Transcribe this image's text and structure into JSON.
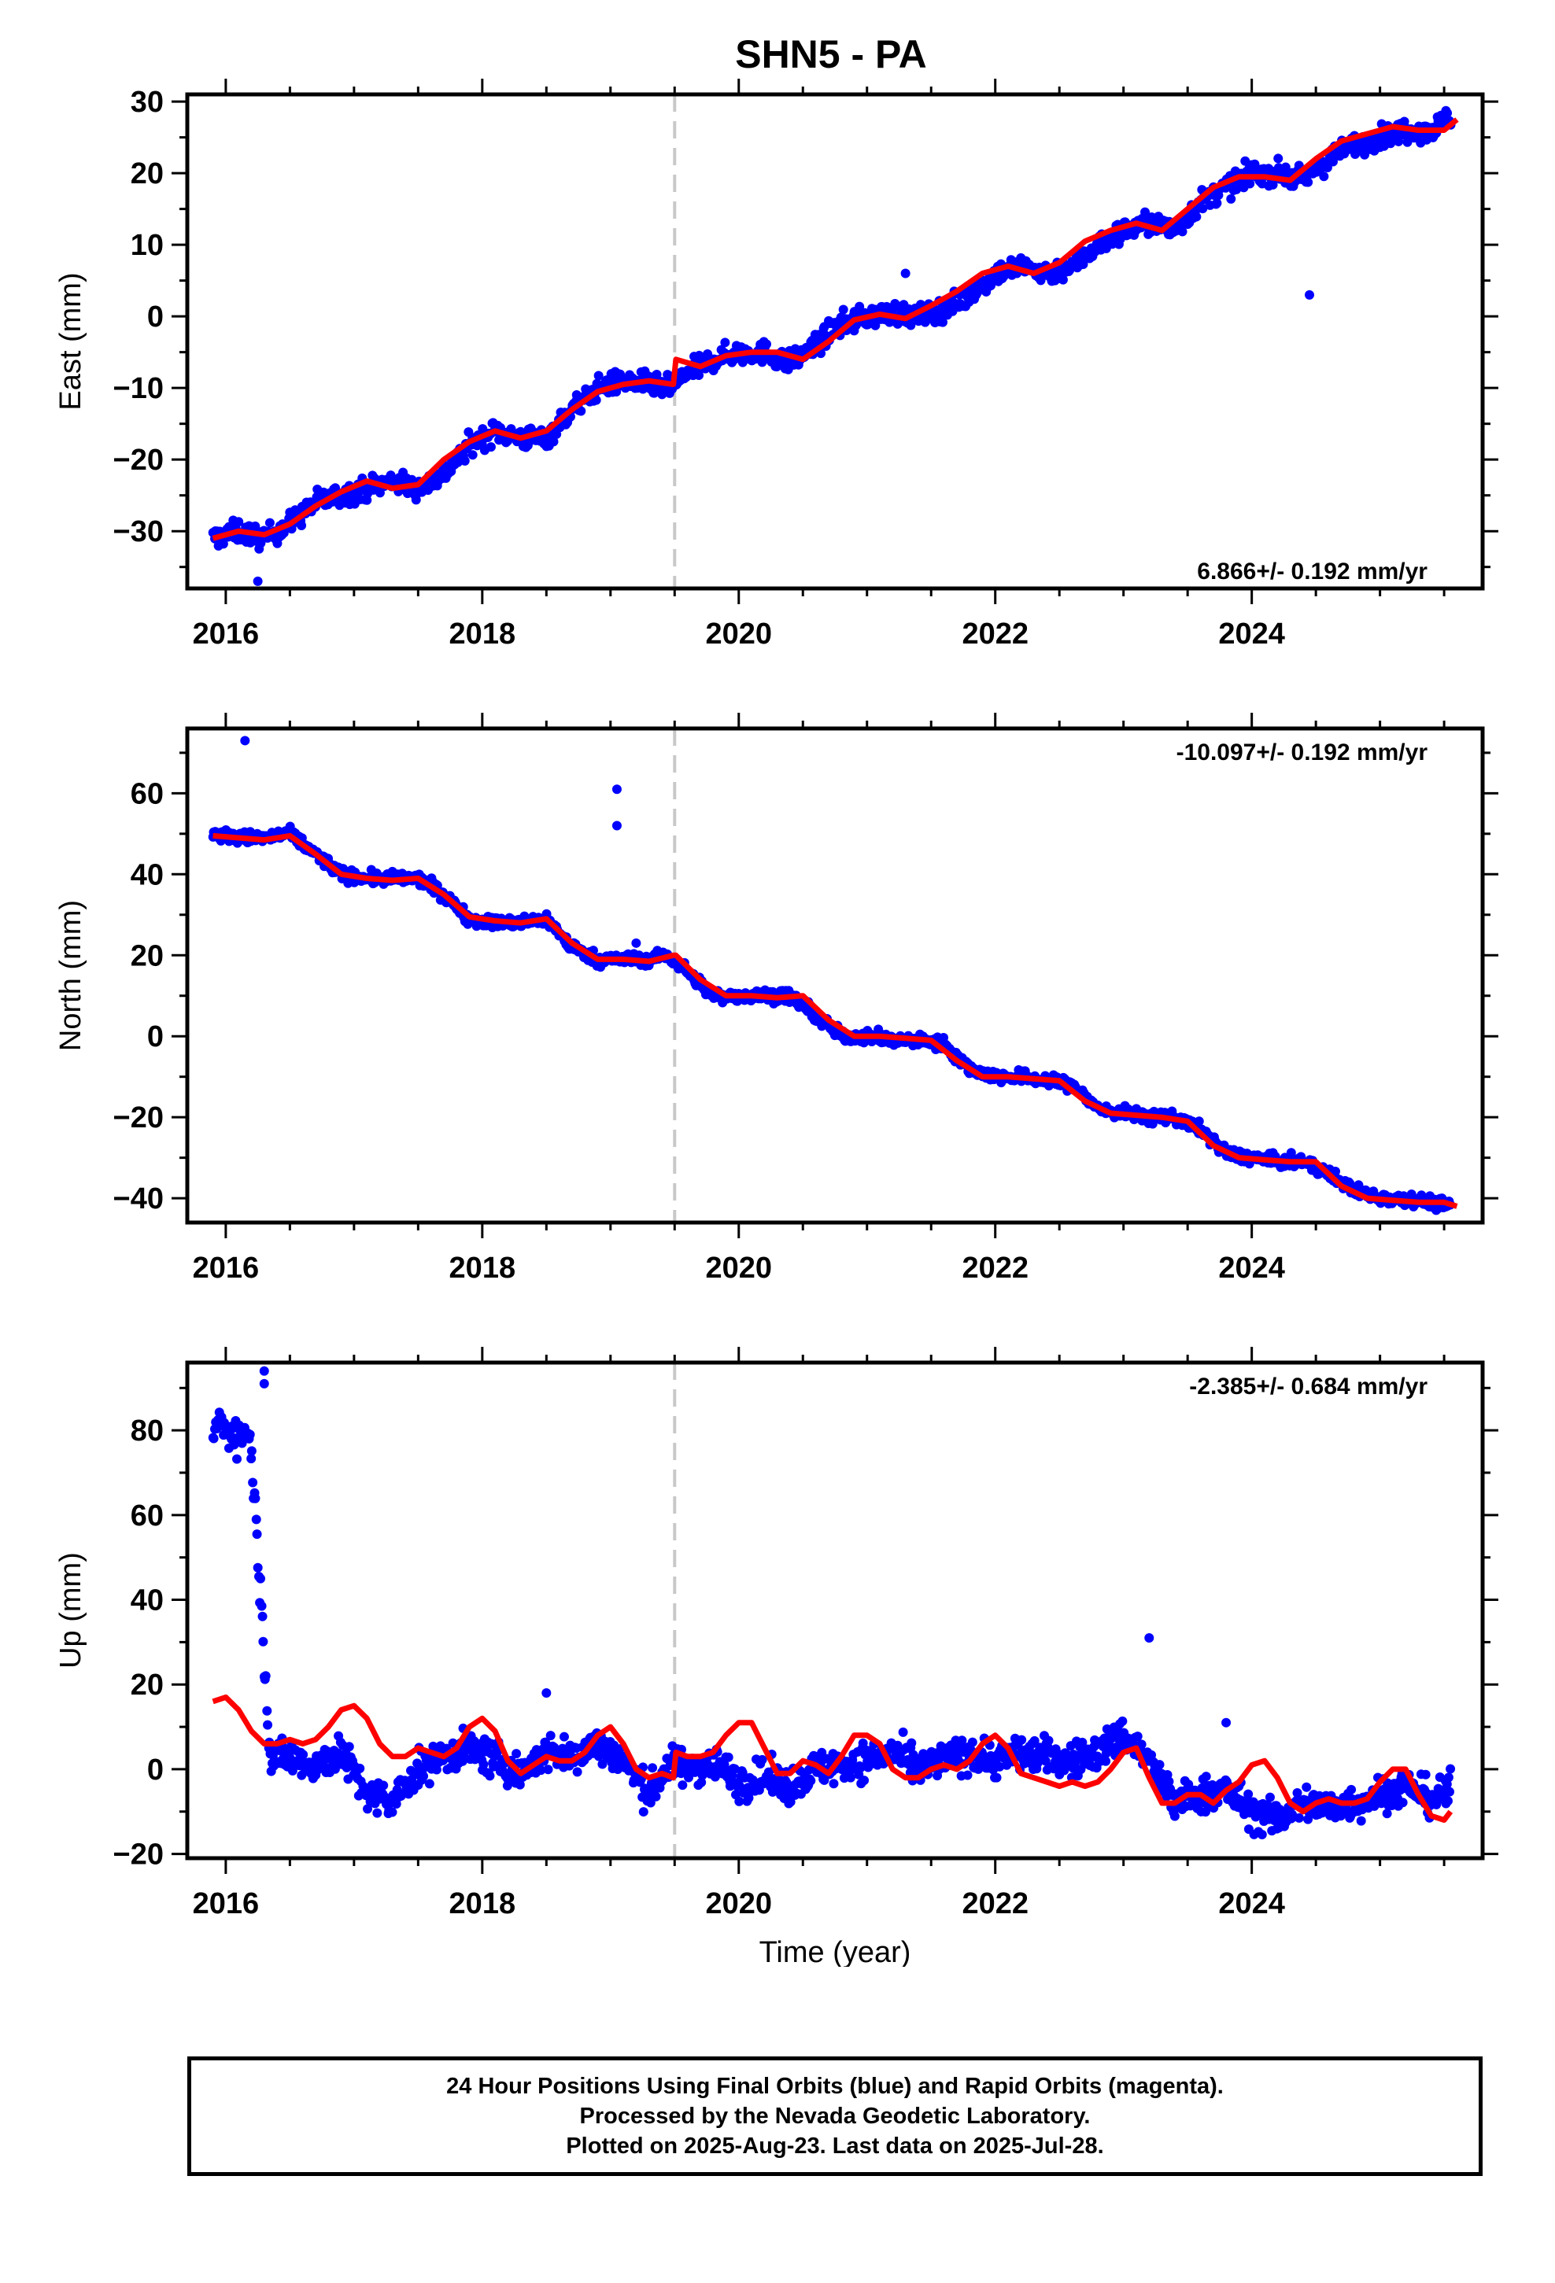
{
  "title": "SHN5 - PA",
  "colors": {
    "points": "#0000ff",
    "fit": "#ff0000",
    "event_line": "#c8c8c8",
    "frame": "#000000"
  },
  "chart_data": [
    {
      "type": "scatter",
      "panel": "east",
      "ylabel": "East (mm)",
      "xlabel": "",
      "xlim": [
        2015.7,
        2025.8
      ],
      "ylim": [
        -38,
        31
      ],
      "x_ticks": [
        2016,
        2018,
        2020,
        2022,
        2024
      ],
      "y_ticks": [
        -30,
        -20,
        -10,
        0,
        10,
        20,
        30
      ],
      "rate_text": "6.866+/- 0.192 mm/yr",
      "event_line_x": 2019.5,
      "series": [
        {
          "kind": "points",
          "role": "daily positions",
          "x": [
            2015.9,
            2016.1,
            2016.3,
            2016.5,
            2016.7,
            2016.9,
            2017.1,
            2017.3,
            2017.5,
            2017.7,
            2017.9,
            2018.1,
            2018.3,
            2018.5,
            2018.7,
            2018.9,
            2019.1,
            2019.3,
            2019.45,
            2019.6,
            2019.8,
            2020.0,
            2020.2,
            2020.4,
            2020.6,
            2020.8,
            2021.0,
            2021.2,
            2021.4,
            2021.6,
            2021.8,
            2022.0,
            2022.2,
            2022.4,
            2022.6,
            2022.8,
            2023.0,
            2023.2,
            2023.4,
            2023.6,
            2023.8,
            2024.0,
            2024.2,
            2024.4,
            2024.6,
            2024.8,
            2025.0,
            2025.2,
            2025.4,
            2025.55
          ],
          "y": [
            -31,
            -30,
            -31,
            -29,
            -26,
            -25,
            -24,
            -23,
            -24,
            -22,
            -18,
            -16,
            -17,
            -17,
            -13,
            -10,
            -9,
            -9.5,
            -10,
            -8,
            -6,
            -5,
            -5,
            -6.5,
            -4,
            -1,
            0,
            0.5,
            0,
            1,
            3,
            6,
            7,
            6,
            7,
            10,
            12,
            13,
            12,
            16,
            18,
            20,
            20,
            19,
            22,
            24,
            25,
            26,
            26,
            28
          ]
        },
        {
          "kind": "outliers",
          "role": "daily positions",
          "x": [
            2016.25,
            2020.9,
            2021.3,
            2024.45
          ],
          "y": [
            -37,
            -2,
            6,
            3
          ]
        },
        {
          "kind": "line",
          "role": "model",
          "x": [
            2015.9,
            2016.1,
            2016.3,
            2016.5,
            2016.7,
            2016.9,
            2017.1,
            2017.3,
            2017.5,
            2017.7,
            2017.9,
            2018.1,
            2018.3,
            2018.5,
            2018.7,
            2018.9,
            2019.1,
            2019.3,
            2019.49,
            2019.51,
            2019.7,
            2019.9,
            2020.1,
            2020.3,
            2020.5,
            2020.7,
            2020.9,
            2021.1,
            2021.3,
            2021.5,
            2021.7,
            2021.9,
            2022.1,
            2022.3,
            2022.5,
            2022.7,
            2022.9,
            2023.1,
            2023.3,
            2023.5,
            2023.7,
            2023.9,
            2024.1,
            2024.3,
            2024.5,
            2024.7,
            2024.9,
            2025.1,
            2025.3,
            2025.5,
            2025.6
          ],
          "y": [
            -31,
            -30,
            -30.5,
            -29,
            -26.5,
            -24.5,
            -23,
            -24,
            -23.5,
            -20,
            -17.5,
            -16,
            -17,
            -16,
            -13,
            -10.5,
            -9.5,
            -9,
            -9.5,
            -6,
            -7,
            -5.5,
            -5,
            -5,
            -6,
            -3.5,
            -0.5,
            0.3,
            -0.3,
            1.5,
            3.5,
            6,
            7,
            6,
            7.5,
            10.5,
            12,
            13,
            12,
            15,
            18,
            19.5,
            19.5,
            19,
            22,
            24.5,
            25.5,
            26.5,
            26,
            26,
            27.5
          ]
        }
      ]
    },
    {
      "type": "scatter",
      "panel": "north",
      "ylabel": "North (mm)",
      "xlabel": "",
      "xlim": [
        2015.7,
        2025.8
      ],
      "ylim": [
        -46,
        76
      ],
      "x_ticks": [
        2016,
        2018,
        2020,
        2022,
        2024
      ],
      "y_ticks": [
        -40,
        -20,
        0,
        20,
        40,
        60
      ],
      "rate_text": "-10.097+/- 0.192 mm/yr",
      "event_line_x": 2019.5,
      "series": [
        {
          "kind": "points",
          "role": "daily positions",
          "x": [
            2015.9,
            2016.1,
            2016.3,
            2016.5,
            2016.7,
            2016.9,
            2017.1,
            2017.3,
            2017.5,
            2017.7,
            2017.9,
            2018.1,
            2018.3,
            2018.5,
            2018.7,
            2018.9,
            2019.1,
            2019.3,
            2019.45,
            2019.6,
            2019.8,
            2020.0,
            2020.2,
            2020.4,
            2020.6,
            2020.8,
            2021.0,
            2021.2,
            2021.4,
            2021.6,
            2021.8,
            2022.0,
            2022.2,
            2022.4,
            2022.6,
            2022.8,
            2023.0,
            2023.2,
            2023.4,
            2023.6,
            2023.8,
            2024.0,
            2024.2,
            2024.4,
            2024.6,
            2024.8,
            2025.0,
            2025.2,
            2025.4,
            2025.55
          ],
          "y": [
            50,
            49,
            49,
            50,
            45,
            40,
            39,
            39,
            39,
            35,
            29,
            28,
            28,
            29,
            22,
            19,
            19,
            19,
            20,
            16,
            10,
            10,
            10,
            10,
            5,
            0,
            0,
            -1,
            -1,
            -2,
            -8,
            -10,
            -10,
            -11,
            -12,
            -18,
            -19,
            -20,
            -20,
            -23,
            -29,
            -30,
            -31,
            -31,
            -34,
            -38,
            -40,
            -40,
            -41,
            -42
          ]
        },
        {
          "kind": "outliers",
          "role": "daily positions",
          "x": [
            2016.15,
            2019.05,
            2019.05,
            2019.2
          ],
          "y": [
            73,
            61,
            52,
            23
          ]
        },
        {
          "kind": "line",
          "role": "model",
          "x": [
            2015.9,
            2016.1,
            2016.3,
            2016.5,
            2016.7,
            2016.9,
            2017.1,
            2017.3,
            2017.5,
            2017.7,
            2017.9,
            2018.1,
            2018.3,
            2018.5,
            2018.7,
            2018.9,
            2019.1,
            2019.3,
            2019.49,
            2019.51,
            2019.7,
            2019.9,
            2020.1,
            2020.3,
            2020.5,
            2020.7,
            2020.9,
            2021.1,
            2021.3,
            2021.5,
            2021.7,
            2021.9,
            2022.1,
            2022.3,
            2022.5,
            2022.7,
            2022.9,
            2023.1,
            2023.3,
            2023.5,
            2023.7,
            2023.9,
            2024.1,
            2024.3,
            2024.5,
            2024.7,
            2024.9,
            2025.1,
            2025.3,
            2025.5,
            2025.6
          ],
          "y": [
            49.5,
            49,
            48.5,
            49.5,
            45,
            40,
            39,
            38.5,
            39,
            35,
            29.5,
            28.5,
            28,
            29,
            23,
            19,
            19,
            18.5,
            20,
            20,
            14,
            10,
            10,
            9.5,
            10,
            4,
            0,
            0,
            -0.5,
            -1,
            -6,
            -10,
            -10,
            -10.5,
            -11,
            -16,
            -19,
            -19.5,
            -20,
            -21,
            -27,
            -30,
            -30.5,
            -31,
            -31,
            -37,
            -40,
            -40.5,
            -41,
            -41,
            -42
          ]
        }
      ]
    },
    {
      "type": "scatter",
      "panel": "up",
      "ylabel": "Up (mm)",
      "xlabel": "Time (year)",
      "xlim": [
        2015.7,
        2025.8
      ],
      "ylim": [
        -21,
        96
      ],
      "x_ticks": [
        2016,
        2018,
        2020,
        2022,
        2024
      ],
      "y_ticks": [
        -20,
        0,
        20,
        40,
        60,
        80
      ],
      "rate_text": "-2.385+/- 0.684 mm/yr",
      "event_line_x": 2019.5,
      "series": [
        {
          "kind": "points",
          "role": "daily positions",
          "x": [
            2015.9,
            2015.95,
            2016.0,
            2016.05,
            2016.1,
            2016.15,
            2016.2,
            2016.35,
            2016.5,
            2016.7,
            2016.9,
            2017.1,
            2017.3,
            2017.5,
            2017.7,
            2017.9,
            2018.1,
            2018.3,
            2018.5,
            2018.7,
            2018.9,
            2019.1,
            2019.3,
            2019.45,
            2019.6,
            2019.8,
            2020.0,
            2020.2,
            2020.4,
            2020.6,
            2020.8,
            2021.0,
            2021.2,
            2021.4,
            2021.6,
            2021.8,
            2022.0,
            2022.2,
            2022.4,
            2022.6,
            2022.8,
            2023.0,
            2023.2,
            2023.4,
            2023.6,
            2023.8,
            2024.0,
            2024.2,
            2024.4,
            2024.6,
            2024.8,
            2025.0,
            2025.2,
            2025.4,
            2025.55
          ],
          "y": [
            80,
            82,
            79,
            81,
            78,
            80,
            76,
            2,
            3,
            1,
            4,
            -6,
            -8,
            0,
            3,
            5,
            2,
            -1,
            4,
            3,
            6,
            2,
            -6,
            1,
            0,
            2,
            -3,
            -2,
            -4,
            0,
            1,
            2,
            4,
            0,
            2,
            4,
            2,
            4,
            3,
            2,
            4,
            8,
            2,
            -8,
            -6,
            -5,
            -10,
            -12,
            -8,
            -9,
            -8,
            -6,
            -4,
            -7,
            -5
          ]
        },
        {
          "kind": "outliers",
          "role": "daily positions",
          "x": [
            2016.3,
            2016.3,
            2018.5,
            2023.2,
            2023.8
          ],
          "y": [
            94,
            91,
            18,
            31,
            11
          ]
        },
        {
          "kind": "line",
          "role": "model",
          "x": [
            2015.9,
            2016.0,
            2016.1,
            2016.2,
            2016.3,
            2016.4,
            2016.5,
            2016.6,
            2016.7,
            2016.8,
            2016.9,
            2017.0,
            2017.1,
            2017.2,
            2017.3,
            2017.4,
            2017.5,
            2017.6,
            2017.7,
            2017.8,
            2017.9,
            2018.0,
            2018.1,
            2018.2,
            2018.3,
            2018.4,
            2018.5,
            2018.6,
            2018.7,
            2018.8,
            2018.9,
            2019.0,
            2019.1,
            2019.2,
            2019.3,
            2019.4,
            2019.49,
            2019.51,
            2019.6,
            2019.7,
            2019.8,
            2019.9,
            2020.0,
            2020.1,
            2020.2,
            2020.3,
            2020.4,
            2020.5,
            2020.6,
            2020.7,
            2020.8,
            2020.9,
            2021.0,
            2021.1,
            2021.2,
            2021.3,
            2021.4,
            2021.5,
            2021.6,
            2021.7,
            2021.8,
            2021.9,
            2022.0,
            2022.1,
            2022.2,
            2022.3,
            2022.4,
            2022.5,
            2022.6,
            2022.7,
            2022.8,
            2022.9,
            2023.0,
            2023.1,
            2023.2,
            2023.3,
            2023.4,
            2023.5,
            2023.6,
            2023.7,
            2023.8,
            2023.9,
            2024.0,
            2024.1,
            2024.2,
            2024.3,
            2024.4,
            2024.5,
            2024.6,
            2024.7,
            2024.8,
            2024.9,
            2025.0,
            2025.1,
            2025.2,
            2025.3,
            2025.4,
            2025.5,
            2025.55
          ],
          "y": [
            16,
            17,
            14,
            9,
            6,
            6,
            7,
            6,
            7,
            10,
            14,
            15,
            12,
            6,
            3,
            3,
            5,
            4,
            3,
            5,
            10,
            12,
            9,
            2,
            -1,
            1,
            3,
            2,
            2,
            4,
            8,
            10,
            6,
            0,
            -2,
            -1,
            -2,
            4,
            3,
            3,
            4,
            8,
            11,
            11,
            5,
            -1,
            -1,
            2,
            1,
            -1,
            3,
            8,
            8,
            6,
            0,
            -2,
            -2,
            0,
            1,
            0,
            2,
            6,
            8,
            5,
            -1,
            -2,
            -3,
            -4,
            -3,
            -4,
            -3,
            0,
            4,
            5,
            -2,
            -8,
            -8,
            -6,
            -6,
            -8,
            -5,
            -3,
            1,
            2,
            -2,
            -8,
            -10,
            -8,
            -7,
            -8,
            -8,
            -7,
            -3,
            0,
            0,
            -6,
            -11,
            -12,
            -10
          ]
        }
      ]
    }
  ],
  "footer": {
    "line1": "24 Hour Positions Using Final Orbits (blue) and Rapid Orbits (magenta).",
    "line2": "Processed by the Nevada Geodetic Laboratory.",
    "line3": "Plotted on 2025-Aug-23. Last data on 2025-Jul-28."
  }
}
